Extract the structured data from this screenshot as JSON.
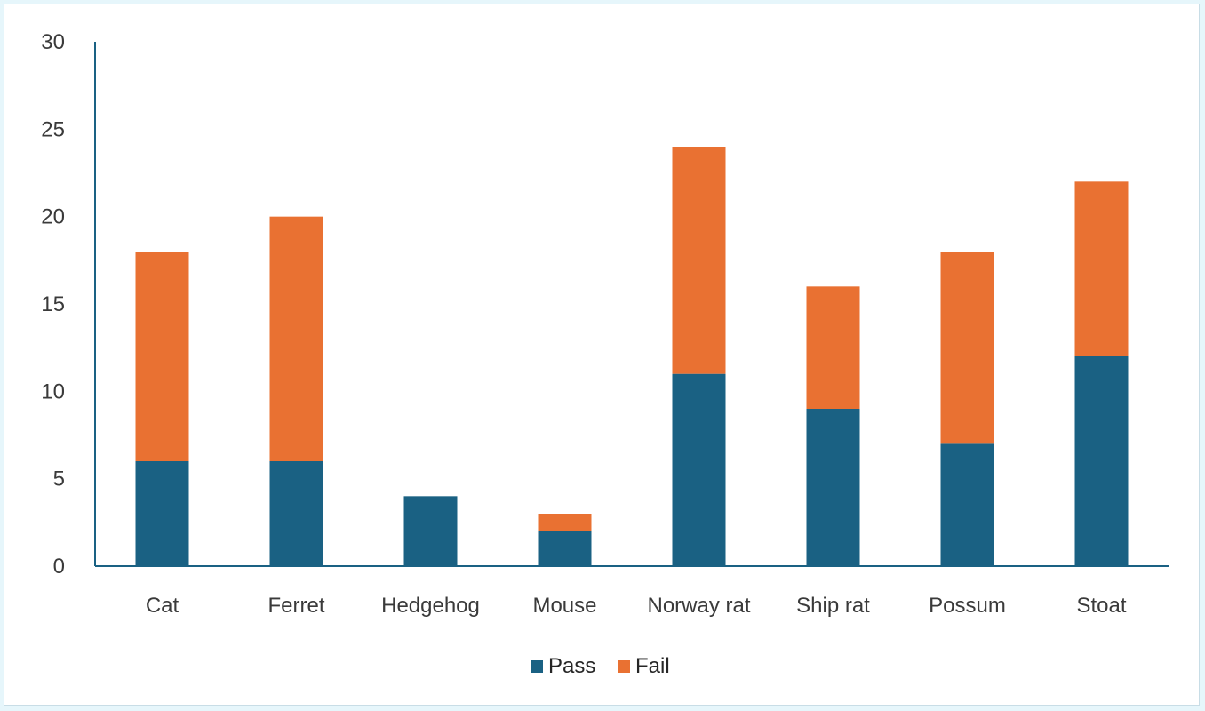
{
  "chart_data": {
    "type": "bar",
    "stacked": true,
    "categories": [
      "Cat",
      "Ferret",
      "Hedgehog",
      "Mouse",
      "Norway rat",
      "Ship rat",
      "Possum",
      "Stoat"
    ],
    "series": [
      {
        "name": "Pass",
        "color": "#1a6183",
        "values": [
          6,
          6,
          4,
          2,
          11,
          9,
          7,
          12
        ]
      },
      {
        "name": "Fail",
        "color": "#e97132",
        "values": [
          12,
          14,
          0,
          1,
          13,
          7,
          11,
          10
        ]
      }
    ],
    "title": "",
    "xlabel": "",
    "ylabel": "",
    "ylim": [
      0,
      30
    ],
    "yticks": [
      0,
      5,
      10,
      15,
      20,
      25,
      30
    ],
    "grid": false,
    "legend_position": "bottom",
    "axis_color": "#1a6183"
  }
}
